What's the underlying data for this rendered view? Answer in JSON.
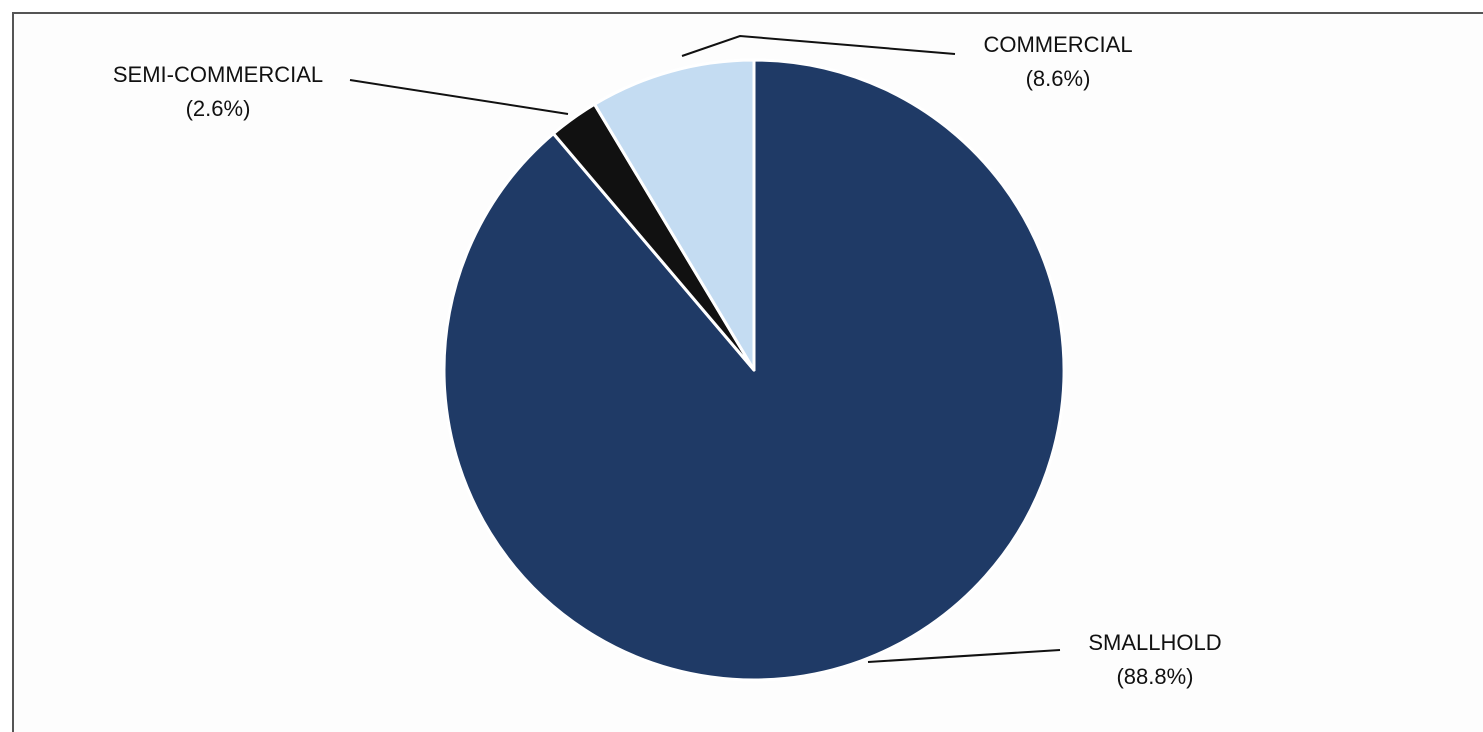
{
  "chart_data": {
    "type": "pie",
    "slices": [
      {
        "label": "SMALLHOLD",
        "pct_label": "(88.8%)",
        "value": 88.8,
        "color": "#1f3a66"
      },
      {
        "label": "SEMI-COMMERCIAL",
        "pct_label": "(2.6%)",
        "value": 2.6,
        "color": "#111111"
      },
      {
        "label": "COMMERCIAL",
        "pct_label": "(8.6%)",
        "value": 8.6,
        "color": "#c4dcf2"
      }
    ],
    "legend": "none"
  }
}
